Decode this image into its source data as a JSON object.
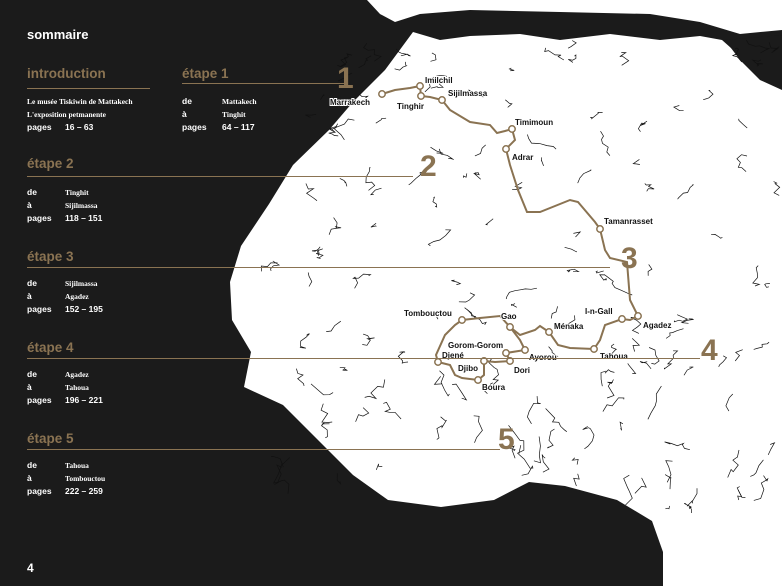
{
  "title": "sommaire",
  "page_number": "4",
  "colors": {
    "accent": "#8a7352",
    "background": "#1b1b1b",
    "land": "#ffffff"
  },
  "introduction": {
    "heading": "introduction",
    "line1": "Le musée Tiskiwin de Mattakech",
    "line2": "L'exposition petmanente",
    "pages_label": "pages",
    "pages": "16 – 63"
  },
  "etapes": [
    {
      "heading": "étape 1",
      "number": "1",
      "de_label": "de",
      "de": "Mattakech",
      "a_label": "à",
      "a": "Tinghit",
      "pages_label": "pages",
      "pages": "64 – 117"
    },
    {
      "heading": "étape 2",
      "number": "2",
      "de_label": "de",
      "de": "Tinghit",
      "a_label": "à",
      "a": "Sijilmassa",
      "pages_label": "pages",
      "pages": "118 – 151"
    },
    {
      "heading": "étape 3",
      "number": "3",
      "de_label": "de",
      "de": "Sijilmassa",
      "a_label": "à",
      "a": "Agadez",
      "pages_label": "pages",
      "pages": "152 – 195"
    },
    {
      "heading": "étape 4",
      "number": "4",
      "de_label": "de",
      "de": "Agadez",
      "a_label": "à",
      "a": "Tahoua",
      "pages_label": "pages",
      "pages": "196 – 221"
    },
    {
      "heading": "étape 5",
      "number": "5",
      "de_label": "de",
      "de": "Tahoua",
      "a_label": "à",
      "a": "Tombouctou",
      "pages_label": "pages",
      "pages": "222 – 259"
    }
  ],
  "map": {
    "cities": [
      "Marrakech",
      "Imilchil",
      "Tinghir",
      "Sijilmassa",
      "Timimoun",
      "Adrar",
      "Tamanrasset",
      "I-n-Gall",
      "Agadez",
      "Tahoua",
      "Ménaka",
      "Gao",
      "Tombouctou",
      "Gorom-Gorom",
      "Djené",
      "Djibo",
      "Boura",
      "Dori",
      "Ayorou"
    ]
  }
}
